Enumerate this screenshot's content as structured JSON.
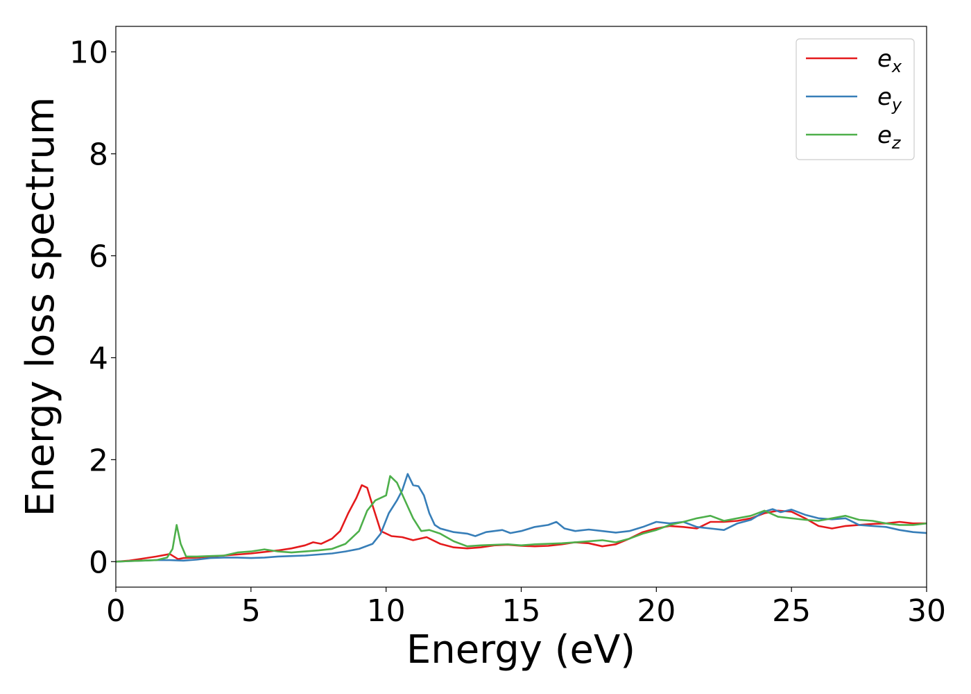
{
  "chart_data": {
    "type": "line",
    "title": "",
    "xlabel": "Energy (eV)",
    "ylabel": "Energy loss spectrum",
    "xlim": [
      0,
      30
    ],
    "ylim": [
      -0.5,
      10.5
    ],
    "xticks": [
      0,
      5,
      10,
      15,
      20,
      25,
      30
    ],
    "yticks": [
      0,
      2,
      4,
      6,
      8,
      10
    ],
    "grid": false,
    "legend_position": "top-right",
    "series": [
      {
        "name": "e_x",
        "legend_base": "e",
        "legend_sub": "x",
        "color": "#e41a1c",
        "x": [
          0,
          0.5,
          1.0,
          1.5,
          2.0,
          2.3,
          2.5,
          3.0,
          3.5,
          4.0,
          4.5,
          5.0,
          5.5,
          6.0,
          6.5,
          7.0,
          7.3,
          7.6,
          8.0,
          8.3,
          8.6,
          8.9,
          9.1,
          9.3,
          9.5,
          9.8,
          10.2,
          10.6,
          11.0,
          11.5,
          12.0,
          12.5,
          13.0,
          13.5,
          14.0,
          14.5,
          15.0,
          15.5,
          16.0,
          16.5,
          17.0,
          17.5,
          18.0,
          18.5,
          19.0,
          19.5,
          20.0,
          20.5,
          21.0,
          21.5,
          22.0,
          22.5,
          23.0,
          23.5,
          24.0,
          24.5,
          25.0,
          25.5,
          26.0,
          26.5,
          27.0,
          27.5,
          28.0,
          28.5,
          29.0,
          29.5,
          30.0
        ],
        "y": [
          0.0,
          0.02,
          0.06,
          0.1,
          0.15,
          0.05,
          0.07,
          0.08,
          0.1,
          0.12,
          0.14,
          0.16,
          0.19,
          0.22,
          0.26,
          0.32,
          0.38,
          0.35,
          0.45,
          0.6,
          0.95,
          1.25,
          1.5,
          1.45,
          1.1,
          0.6,
          0.5,
          0.48,
          0.42,
          0.48,
          0.35,
          0.28,
          0.26,
          0.28,
          0.32,
          0.33,
          0.31,
          0.3,
          0.31,
          0.34,
          0.38,
          0.36,
          0.3,
          0.34,
          0.45,
          0.58,
          0.65,
          0.7,
          0.68,
          0.65,
          0.78,
          0.78,
          0.8,
          0.85,
          0.95,
          1.0,
          0.98,
          0.85,
          0.7,
          0.65,
          0.7,
          0.72,
          0.74,
          0.75,
          0.78,
          0.75,
          0.75
        ]
      },
      {
        "name": "e_y",
        "legend_base": "e",
        "legend_sub": "y",
        "color": "#377eb8",
        "x": [
          0,
          0.5,
          1.0,
          1.5,
          2.0,
          2.5,
          3.0,
          3.5,
          4.0,
          4.5,
          5.0,
          5.5,
          6.0,
          6.5,
          7.0,
          7.5,
          8.0,
          8.5,
          9.0,
          9.5,
          9.8,
          10.1,
          10.4,
          10.6,
          10.8,
          11.0,
          11.2,
          11.4,
          11.6,
          11.8,
          12.0,
          12.5,
          13.0,
          13.3,
          13.7,
          14.0,
          14.3,
          14.6,
          15.0,
          15.5,
          16.0,
          16.3,
          16.6,
          17.0,
          17.5,
          18.0,
          18.5,
          19.0,
          19.5,
          20.0,
          20.5,
          21.0,
          21.5,
          22.0,
          22.5,
          23.0,
          23.5,
          24.0,
          24.3,
          24.6,
          25.0,
          25.5,
          26.0,
          26.5,
          27.0,
          27.5,
          28.0,
          28.5,
          29.0,
          29.5,
          30.0
        ],
        "y": [
          0.0,
          0.01,
          0.02,
          0.03,
          0.03,
          0.02,
          0.04,
          0.07,
          0.08,
          0.08,
          0.07,
          0.08,
          0.1,
          0.11,
          0.12,
          0.14,
          0.16,
          0.2,
          0.25,
          0.35,
          0.55,
          0.95,
          1.2,
          1.4,
          1.72,
          1.5,
          1.48,
          1.3,
          0.95,
          0.72,
          0.65,
          0.58,
          0.55,
          0.5,
          0.58,
          0.6,
          0.62,
          0.56,
          0.6,
          0.68,
          0.72,
          0.78,
          0.65,
          0.6,
          0.63,
          0.6,
          0.57,
          0.6,
          0.68,
          0.78,
          0.75,
          0.78,
          0.68,
          0.65,
          0.62,
          0.75,
          0.82,
          0.98,
          1.03,
          0.97,
          1.02,
          0.92,
          0.85,
          0.83,
          0.85,
          0.72,
          0.7,
          0.68,
          0.62,
          0.58,
          0.56
        ]
      },
      {
        "name": "e_z",
        "legend_base": "e",
        "legend_sub": "z",
        "color": "#4daf4a",
        "x": [
          0,
          0.5,
          1.0,
          1.5,
          1.9,
          2.1,
          2.25,
          2.4,
          2.6,
          3.0,
          3.5,
          4.0,
          4.5,
          5.0,
          5.5,
          6.0,
          6.5,
          7.0,
          7.5,
          8.0,
          8.5,
          9.0,
          9.3,
          9.6,
          10.0,
          10.15,
          10.4,
          10.7,
          11.0,
          11.3,
          11.6,
          12.0,
          12.5,
          13.0,
          13.5,
          14.0,
          14.5,
          15.0,
          15.5,
          16.0,
          16.5,
          17.0,
          17.5,
          18.0,
          18.5,
          19.0,
          19.5,
          20.0,
          20.5,
          21.0,
          21.5,
          22.0,
          22.5,
          23.0,
          23.5,
          24.0,
          24.5,
          25.0,
          25.5,
          26.0,
          26.5,
          27.0,
          27.5,
          28.0,
          28.5,
          29.0,
          29.5,
          30.0
        ],
        "y": [
          0.0,
          0.01,
          0.02,
          0.03,
          0.08,
          0.25,
          0.72,
          0.35,
          0.1,
          0.1,
          0.11,
          0.12,
          0.18,
          0.2,
          0.24,
          0.2,
          0.18,
          0.2,
          0.22,
          0.25,
          0.35,
          0.6,
          1.0,
          1.2,
          1.3,
          1.68,
          1.55,
          1.2,
          0.85,
          0.6,
          0.62,
          0.55,
          0.4,
          0.3,
          0.32,
          0.33,
          0.34,
          0.32,
          0.34,
          0.35,
          0.36,
          0.38,
          0.4,
          0.42,
          0.38,
          0.45,
          0.55,
          0.62,
          0.72,
          0.78,
          0.85,
          0.9,
          0.8,
          0.85,
          0.9,
          1.0,
          0.88,
          0.85,
          0.82,
          0.8,
          0.85,
          0.9,
          0.82,
          0.8,
          0.75,
          0.72,
          0.72,
          0.75
        ]
      }
    ]
  }
}
